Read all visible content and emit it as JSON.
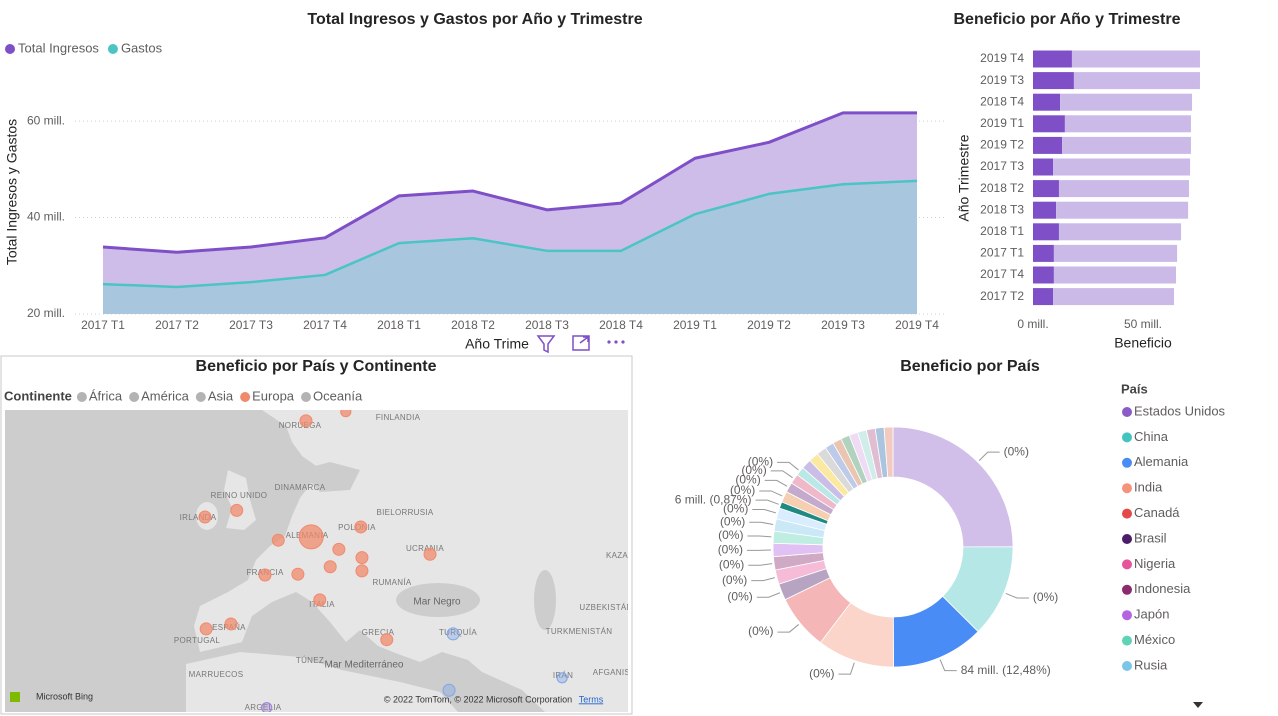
{
  "chart_data": [
    {
      "type": "area",
      "title": "Total Ingresos y Gastos por Año y Trimestre",
      "x_label": "Año Trime",
      "y_label": "Total Ingresos y Gastos",
      "categories": [
        "2017 T1",
        "2017 T2",
        "2017 T3",
        "2017 T4",
        "2018 T1",
        "2018 T2",
        "2018 T3",
        "2018 T4",
        "2019 T1",
        "2019 T2",
        "2019 T3",
        "2019 T4"
      ],
      "series": [
        {
          "name": "Total Ingresos",
          "color": "#7e4fc7",
          "fill": "#cbb9e8",
          "values": [
            33900000,
            32800000,
            33900000,
            35800000,
            44500000,
            45500000,
            41600000,
            43000000,
            52300000,
            55600000,
            61700000,
            61700000
          ]
        },
        {
          "name": "Gastos",
          "color": "#4bc4c4",
          "fill": "#a6c6de",
          "values": [
            26200000,
            25600000,
            26600000,
            28100000,
            34700000,
            35700000,
            33100000,
            33100000,
            40700000,
            44900000,
            46900000,
            47600000
          ]
        }
      ],
      "ylim": [
        20000000,
        65000000
      ],
      "yticks": [
        {
          "value": 20000000,
          "label": "20 mill."
        },
        {
          "value": 40000000,
          "label": "40 mill."
        },
        {
          "value": 60000000,
          "label": "60 mill."
        }
      ],
      "grid": true,
      "legend": "top-left"
    },
    {
      "type": "hbar",
      "title": "Beneficio por Año y Trimestre",
      "x_label": "Beneficio",
      "y_label": "Año Trimestre",
      "categories": [
        "2019 T4",
        "2019 T3",
        "2018 T4",
        "2019 T1",
        "2019 T2",
        "2017 T3",
        "2018 T2",
        "2018 T3",
        "2018 T1",
        "2017 T1",
        "2017 T4",
        "2017 T2"
      ],
      "stacked": true,
      "series": [
        {
          "color": "#7e4fc7",
          "values": [
            17700000,
            18600000,
            12300000,
            14500000,
            13200000,
            9100000,
            11800000,
            10500000,
            11800000,
            9500000,
            9500000,
            9100000
          ]
        },
        {
          "color": "#cbb9e8",
          "values": [
            58200000,
            57300000,
            60000000,
            57300000,
            58600000,
            62300000,
            59100000,
            60000000,
            55500000,
            56000000,
            55500000,
            55000000
          ]
        }
      ],
      "xlim": [
        0,
        80000000
      ],
      "xticks": [
        {
          "value": 0,
          "label": "0 mill."
        },
        {
          "value": 50000000,
          "label": "50 mill."
        }
      ]
    },
    {
      "type": "bubble-map",
      "title": "Beneficio por País y Continente",
      "legend_title": "Continente",
      "selected": "Europa",
      "series": [
        {
          "name": "África",
          "color": "#9b7fd4",
          "lon": [
            2.7
          ],
          "lat": [
            30.0
          ],
          "sizes": [
            15000000
          ]
        },
        {
          "name": "América",
          "color": "#8fb8e8",
          "lon": [],
          "lat": [],
          "sizes": []
        },
        {
          "name": "Asia",
          "color": "#7ea6e8",
          "lon": [
            35.0,
            34.3,
            53.9
          ],
          "lat": [
            38.9,
            32.1,
            33.6
          ],
          "sizes": [
            21000000,
            21000000,
            15000000
          ]
        },
        {
          "name": "Europa",
          "color": "#f08a6c",
          "lon": [
            9.5,
            16.4,
            -2.5,
            -8.0,
            10.4,
            19.0,
            4.7,
            15.2,
            19.2,
            13.7,
            19.2,
            31.0,
            2.4,
            8.1,
            11.9,
            -3.5,
            -7.8,
            23.5
          ],
          "lat": [
            64.6,
            65.7,
            53.8,
            53.0,
            50.6,
            51.8,
            50.2,
            49.1,
            48.1,
            47.0,
            46.5,
            48.5,
            46.0,
            46.1,
            43.0,
            40.1,
            39.5,
            38.2
          ],
          "sizes": [
            21000000,
            15000000,
            21000000,
            21000000,
            84000000,
            21000000,
            21000000,
            21000000,
            21000000,
            21000000,
            21000000,
            21000000,
            21000000,
            21000000,
            21000000,
            21000000,
            21000000,
            21000000
          ]
        },
        {
          "name": "Oceanía",
          "color": "#a0a0a0",
          "lon": [],
          "lat": [],
          "sizes": []
        }
      ],
      "places": [
        "FINLANDIA",
        "NORUEGA",
        "DINAMARCA",
        "REINO UNIDO",
        "IRLANDA",
        "BIELORRUSIA",
        "POLONIA",
        "ALEMANIA",
        "UCRANIA",
        "FRANCIA",
        "RUMANÍA",
        "KAZA",
        "ITALIA",
        "Mar Negro",
        "UZBEKISTÁN",
        "ESPAÑA",
        "PORTUGAL",
        "GRECIA",
        "TURQUÍA",
        "TURKMENISTÁN",
        "TÚNEZ",
        "Mar Mediterráneo",
        "MARRUECOS",
        "IRÁN",
        "AFGANIST",
        "ARGELIA"
      ],
      "attribution": [
        "Microsoft Bing",
        "© 2022 TomTom, © 2022 Microsoft Corporation",
        "Terms"
      ]
    },
    {
      "type": "donut",
      "title": "Beneficio por País",
      "legend_title": "País",
      "categories": [
        "Estados Unidos",
        "China",
        "Alemania",
        "India",
        "Canadá",
        "Brasil",
        "Nigeria",
        "Indonesia",
        "Japón",
        "México",
        "Rusia",
        null,
        null,
        null,
        null,
        null,
        null,
        null,
        null,
        null,
        null,
        null,
        null,
        null,
        null,
        null,
        null,
        null
      ],
      "values": [
        168000000,
        84000000,
        84000000,
        70000000,
        50000000,
        15000000,
        13000000,
        12000000,
        12000000,
        11000000,
        11000000,
        10000000,
        5870000,
        10000000,
        9000000,
        9000000,
        8000000,
        9000000,
        9000000,
        9000000,
        8000000,
        8000000,
        8000000,
        8000000,
        8000000,
        8000000,
        8000000,
        8000000
      ],
      "highlights": [
        0,
        0,
        84000000,
        0,
        0,
        0,
        0,
        0,
        0,
        0,
        0,
        0,
        5870000,
        0,
        0,
        0,
        0,
        0,
        0,
        0,
        0,
        0,
        0,
        0,
        0,
        0,
        0,
        0
      ],
      "value_labels": [
        "(0%)",
        "(0%)",
        "84 mill. (12,48%)",
        "(0%)",
        "(0%)",
        "(0%)",
        "(0%)",
        "(0%)",
        "(0%)",
        "(0%)",
        "(0%)",
        "(0%)",
        "6 mill. (0,87%)",
        "(0%)",
        "(0%)",
        "(0%)",
        "(0%)",
        null,
        null,
        null,
        null,
        null,
        null,
        null,
        null,
        null,
        null,
        null
      ],
      "colors": [
        "#8b5cc8",
        "#44c4c0",
        "#4a8cf5",
        "#f4937a",
        "#e44848",
        "#4b1c6a",
        "#e6559a",
        "#8a2b6e",
        "#b463e3",
        "#5fd3b4",
        "#7bc6e8",
        "#a0d1ff",
        "#1f8a82",
        "#e9883f",
        "#6b2d83",
        "#d94f7a",
        "#4ec8c2",
        "#7a5cc0",
        "#f2c80f",
        "#a3a3a3",
        "#5b7dc8",
        "#c96e3e",
        "#3c8f5c",
        "#d6a5e0",
        "#8dd3c7",
        "#b35a8f",
        "#2d6fb5",
        "#e07a5f"
      ]
    }
  ]
}
